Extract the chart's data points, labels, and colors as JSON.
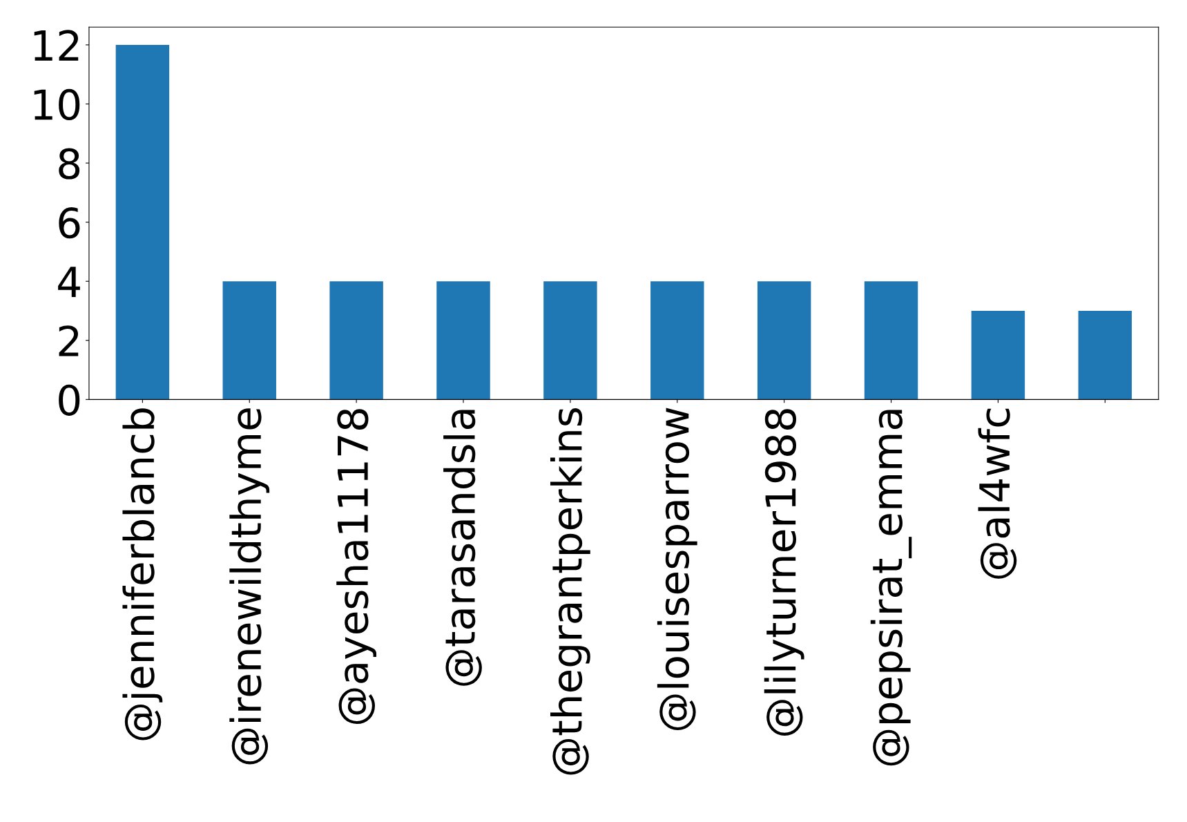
{
  "chart_data": {
    "type": "bar",
    "categories": [
      "@jenniferblancb",
      "@irenewildthyme",
      "@ayesha11178",
      "@tarasandsla",
      "@thegrantperkins",
      "@louisesparrow",
      "@lilyturner1988",
      "@pepsirat_emma",
      "@al4wfc",
      null
    ],
    "values": [
      12,
      4,
      4,
      4,
      4,
      4,
      4,
      4,
      3,
      3
    ],
    "color": "#1f77b4",
    "ylim": [
      0,
      12.6
    ],
    "yticks": [
      0,
      2,
      4,
      6,
      8,
      10,
      12
    ],
    "grid": false
  }
}
